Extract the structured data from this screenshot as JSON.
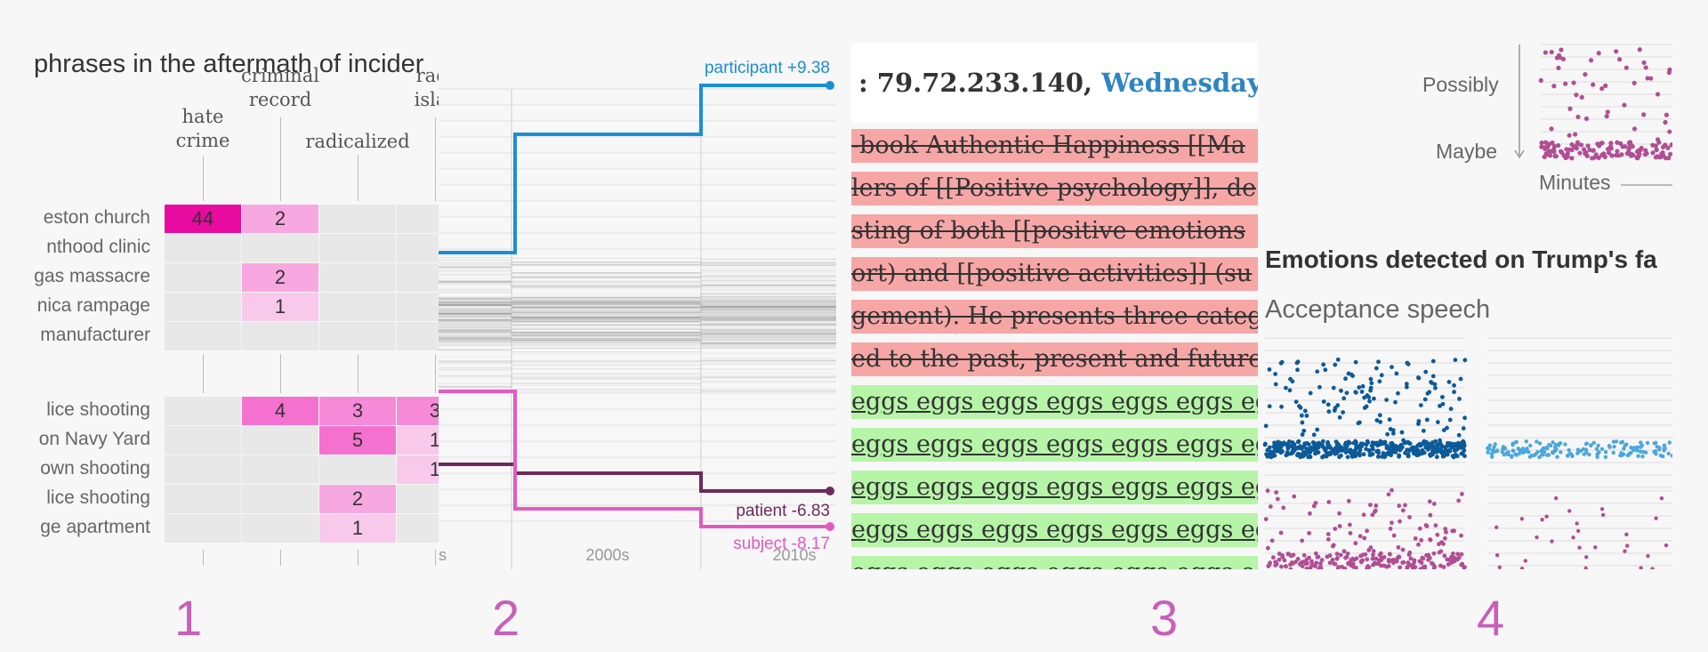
{
  "panels": [
    {
      "number": "1",
      "title": "phrases in the aftermath of incider",
      "columns": [
        {
          "label_lines": [
            "hate",
            "crime"
          ]
        },
        {
          "label_lines": [
            "criminal",
            "record"
          ]
        },
        {
          "label_lines": [
            "radicalized"
          ]
        },
        {
          "label_lines": [
            "radi",
            "islar"
          ]
        }
      ],
      "rows": [
        {
          "label": "eston church",
          "values": [
            "44",
            "2",
            "",
            ""
          ],
          "shades": [
            "#e90aa0",
            "#f8a8e0",
            "",
            ""
          ]
        },
        {
          "label": "nthood clinic",
          "values": [
            "",
            "",
            "",
            ""
          ],
          "shades": [
            "",
            "",
            "",
            ""
          ]
        },
        {
          "label": "gas massacre",
          "values": [
            "",
            "2",
            "",
            ""
          ],
          "shades": [
            "",
            "#f8a8e0",
            "",
            ""
          ]
        },
        {
          "label": "nica rampage",
          "values": [
            "",
            "1",
            "",
            ""
          ],
          "shades": [
            "",
            "#f9c9ec",
            "",
            ""
          ]
        },
        {
          "label": "manufacturer",
          "values": [
            "",
            "",
            "",
            ""
          ],
          "shades": [
            "",
            "",
            "",
            ""
          ]
        },
        {
          "label": "lice shooting",
          "values": [
            "",
            "4",
            "3",
            "3"
          ],
          "shades": [
            "",
            "#f571cf",
            "#f78ad8",
            "#f78ad8"
          ]
        },
        {
          "label": "on Navy Yard",
          "values": [
            "",
            "",
            "5",
            "1"
          ],
          "shades": [
            "",
            "",
            "#f571cf",
            "#f9c9ec"
          ]
        },
        {
          "label": "own shooting",
          "values": [
            "",
            "",
            "",
            "1"
          ],
          "shades": [
            "",
            "",
            "",
            "#f9c9ec"
          ]
        },
        {
          "label": "lice shooting",
          "values": [
            "",
            "",
            "2",
            ""
          ],
          "shades": [
            "",
            "",
            "#f8a8e0",
            ""
          ]
        },
        {
          "label": "ge apartment",
          "values": [
            "",
            "",
            "1",
            ""
          ],
          "shades": [
            "",
            "",
            "#f9c9ec",
            ""
          ]
        }
      ]
    },
    {
      "number": "2",
      "chart_data": {
        "type": "line",
        "title": "",
        "x_tick_labels": [
          "s",
          "2000s",
          "2010s"
        ],
        "series": [
          {
            "name": "participant +9.38",
            "color": "#1a8fd6"
          },
          {
            "name": "patient -6.83",
            "color": "#6e2a5a"
          },
          {
            "name": "subject -8.17",
            "color": "#e05ac3"
          }
        ]
      }
    },
    {
      "number": "3",
      "header": {
        "ip": ": 79.72.233.140, ",
        "date": "Wednesday Oc"
      },
      "lines": [
        {
          "kind": "del",
          "text": "-book Authentic Happiness [[Ma"
        },
        {
          "kind": "del",
          "text": "lers of [[Positive psychology]], de"
        },
        {
          "kind": "del",
          "text": "sting of both [[positive emotions"
        },
        {
          "kind": "del",
          "text": "ort) and [[positive activities]] (su"
        },
        {
          "kind": "del",
          "text": "gement). He presents three categ"
        },
        {
          "kind": "del",
          "text": "ed to the past, present and future"
        },
        {
          "kind": "ins",
          "text": "eggs eggs eggs eggs eggs eggs eg"
        },
        {
          "kind": "ins",
          "text": "eggs eggs eggs eggs eggs eggs eg"
        },
        {
          "kind": "ins",
          "text": "eggs eggs eggs eggs eggs eggs eg"
        },
        {
          "kind": "ins",
          "text": "eggs eggs eggs eggs eggs eggs eg"
        },
        {
          "kind": "ins",
          "text": "eggs eggs eggs eggs eggs eggs eg"
        }
      ]
    },
    {
      "number": "4",
      "axis_labels": {
        "possibly": "Possibly",
        "maybe": "Maybe",
        "minutes": "Minutes"
      },
      "title": "Emotions detected on Trump's fa",
      "subtitle": "Acceptance speech",
      "colors": {
        "magenta": "#b04e93",
        "navy": "#0d5a99",
        "light_blue": "#4ba7dc"
      }
    }
  ]
}
